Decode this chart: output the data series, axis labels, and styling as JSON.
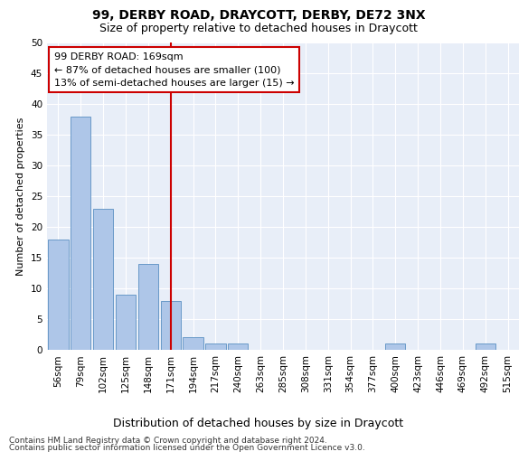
{
  "title1": "99, DERBY ROAD, DRAYCOTT, DERBY, DE72 3NX",
  "title2": "Size of property relative to detached houses in Draycott",
  "xlabel": "Distribution of detached houses by size in Draycott",
  "ylabel": "Number of detached properties",
  "categories": [
    "56sqm",
    "79sqm",
    "102sqm",
    "125sqm",
    "148sqm",
    "171sqm",
    "194sqm",
    "217sqm",
    "240sqm",
    "263sqm",
    "285sqm",
    "308sqm",
    "331sqm",
    "354sqm",
    "377sqm",
    "400sqm",
    "423sqm",
    "446sqm",
    "469sqm",
    "492sqm",
    "515sqm"
  ],
  "values": [
    18,
    38,
    23,
    9,
    14,
    8,
    2,
    1,
    1,
    0,
    0,
    0,
    0,
    0,
    0,
    1,
    0,
    0,
    0,
    1,
    0
  ],
  "bar_color": "#aec6e8",
  "bar_edge_color": "#5a8fc2",
  "vline_index": 5,
  "vline_color": "#cc0000",
  "annotation_text": "99 DERBY ROAD: 169sqm\n← 87% of detached houses are smaller (100)\n13% of semi-detached houses are larger (15) →",
  "annotation_box_color": "#ffffff",
  "annotation_box_edge_color": "#cc0000",
  "ylim": [
    0,
    50
  ],
  "yticks": [
    0,
    5,
    10,
    15,
    20,
    25,
    30,
    35,
    40,
    45,
    50
  ],
  "footnote1": "Contains HM Land Registry data © Crown copyright and database right 2024.",
  "footnote2": "Contains public sector information licensed under the Open Government Licence v3.0.",
  "background_color": "#e8eef8",
  "grid_color": "#ffffff",
  "title1_fontsize": 10,
  "title2_fontsize": 9,
  "xlabel_fontsize": 9,
  "ylabel_fontsize": 8,
  "tick_fontsize": 7.5,
  "annotation_fontsize": 8,
  "footnote_fontsize": 6.5
}
